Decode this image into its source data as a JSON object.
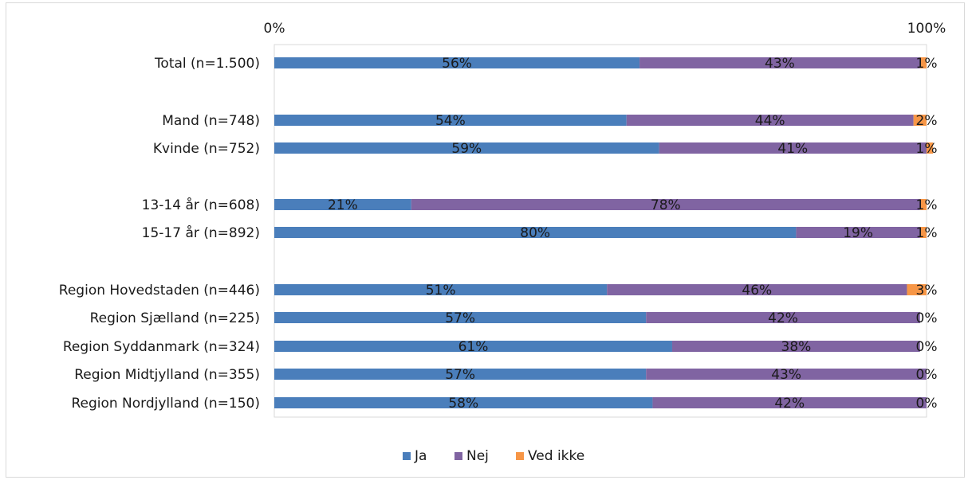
{
  "chart_data": {
    "type": "bar",
    "stacked": true,
    "orientation": "horizontal",
    "axis": {
      "min_label": "0%",
      "max_label": "100%",
      "xlim": [
        0,
        100
      ]
    },
    "categories": [
      "Total (n=1.500)",
      "Mand (n=748)",
      "Kvinde (n=752)",
      "13-14 år (n=608)",
      "15-17 år (n=892)",
      "Region Hovedstaden (n=446)",
      "Region Sjælland (n=225)",
      "Region Syddanmark (n=324)",
      "Region Midtjylland (n=355)",
      "Region Nordjylland (n=150)"
    ],
    "series": [
      {
        "name": "Ja",
        "color": "#4a7ebb",
        "values": [
          56,
          54,
          59,
          21,
          80,
          51,
          57,
          61,
          57,
          58
        ],
        "labels": [
          "56%",
          "54%",
          "59%",
          "21%",
          "80%",
          "51%",
          "57%",
          "61%",
          "57%",
          "58%"
        ]
      },
      {
        "name": "Nej",
        "color": "#8064a2",
        "values": [
          43,
          44,
          41,
          78,
          19,
          46,
          42,
          38,
          43,
          42
        ],
        "labels": [
          "43%",
          "44%",
          "41%",
          "78%",
          "19%",
          "46%",
          "42%",
          "38%",
          "43%",
          "42%"
        ]
      },
      {
        "name": "Ved ikke",
        "color": "#f79646",
        "values": [
          1,
          2,
          1,
          1,
          1,
          3,
          0,
          0,
          0,
          0
        ],
        "labels": [
          "1%",
          "2%",
          "1%",
          "1%",
          "1%",
          "3%",
          "0%",
          "0%",
          "0%",
          "0%"
        ]
      }
    ],
    "legend": {
      "position": "bottom",
      "items": [
        "Ja",
        "Nej",
        "Ved ikke"
      ]
    },
    "grid": false
  }
}
